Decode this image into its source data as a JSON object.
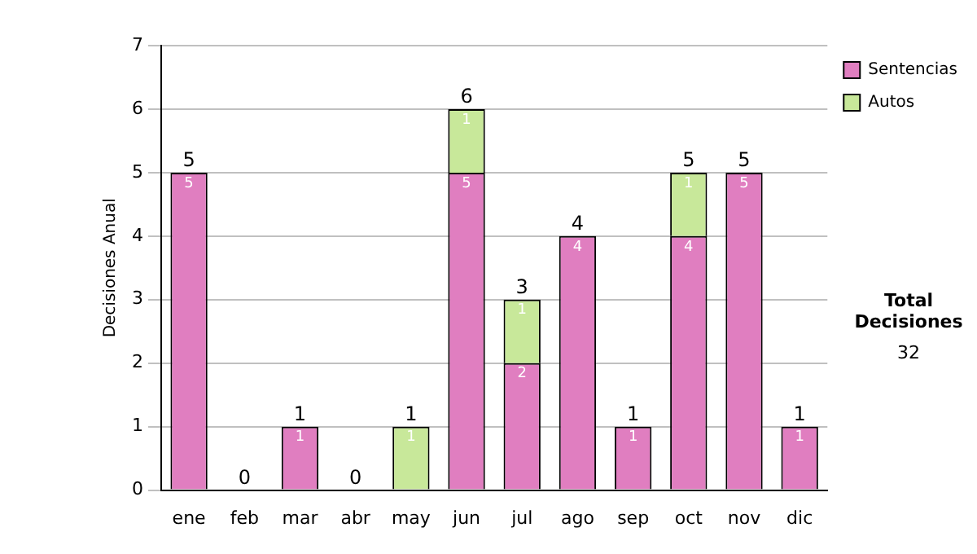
{
  "chart_data": {
    "type": "bar",
    "stacked": true,
    "ylabel": "Decisiones Anual",
    "categories": [
      "ene",
      "feb",
      "mar",
      "abr",
      "may",
      "jun",
      "jul",
      "ago",
      "sep",
      "oct",
      "nov",
      "dic"
    ],
    "series": [
      {
        "name": "Sentencias",
        "color": "#e07ec0",
        "values": [
          5,
          0,
          1,
          0,
          0,
          5,
          2,
          4,
          1,
          4,
          5,
          1
        ],
        "value_labels": [
          "5",
          null,
          "1",
          null,
          null,
          "5",
          "2",
          "4",
          "1",
          "4",
          "5",
          "1"
        ]
      },
      {
        "name": "Autos",
        "color": "#c8e89a",
        "values": [
          0,
          0,
          0,
          0,
          1,
          1,
          1,
          0,
          0,
          1,
          0,
          0
        ],
        "value_labels": [
          null,
          null,
          null,
          null,
          "1",
          "1",
          "1",
          null,
          null,
          "1",
          null,
          null
        ]
      }
    ],
    "totals": [
      "5",
      "0",
      "1",
      "0",
      "1",
      "6",
      "3",
      "4",
      "1",
      "5",
      "5",
      "1"
    ],
    "ylim": [
      0,
      7
    ],
    "yticks": [
      0,
      1,
      2,
      3,
      4,
      5,
      6,
      7
    ],
    "grid": "y",
    "legend": "right",
    "annotations": [
      "Total Decisiones",
      "32"
    ]
  }
}
